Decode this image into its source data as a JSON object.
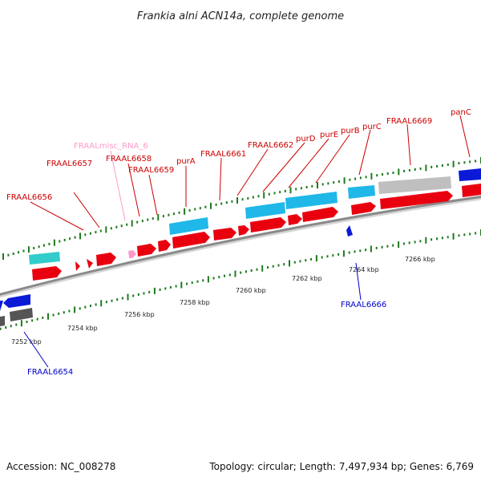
{
  "title": "Frankia alni ACN14a, complete genome",
  "footer": {
    "accession": "Accession: NC_008278",
    "summary": "Topology: circular; Length: 7,497,934 bp; Genes: 6,769"
  },
  "colors": {
    "background": "#ffffff",
    "forward_cds": "#e8000f",
    "reverse_cds": "#0a1ad6",
    "forward_gene_bar": "#1fb8e8",
    "forward_rna_bar": "#33cccc",
    "grey_bar": "#bfbfbf",
    "dark_grey_bar": "#555555",
    "misc_rna": "#ff99cc",
    "label_red": "#cc0000",
    "label_blue": "#0000cc",
    "label_pink": "#ff99cc",
    "backbone": "#9a9a9a",
    "tick": "#1f7a1f"
  },
  "ticks": [
    "7252 kbp",
    "7254 kbp",
    "7256 kbp",
    "7258 kbp",
    "7260 kbp",
    "7262 kbp",
    "7264 kbp",
    "7266 kbp"
  ],
  "forward_labels": [
    "FRAAL6656",
    "FRAAL6657",
    "FRAALmisc_RNA_6",
    "FRAAL6658",
    "FRAAL6659",
    "purA",
    "FRAAL6661",
    "FRAAL6662",
    "purD",
    "purE",
    "purB",
    "purC",
    "FRAAL6669",
    "panC"
  ],
  "reverse_labels": [
    "FRAAL6654",
    "FRAAL6666"
  ]
}
